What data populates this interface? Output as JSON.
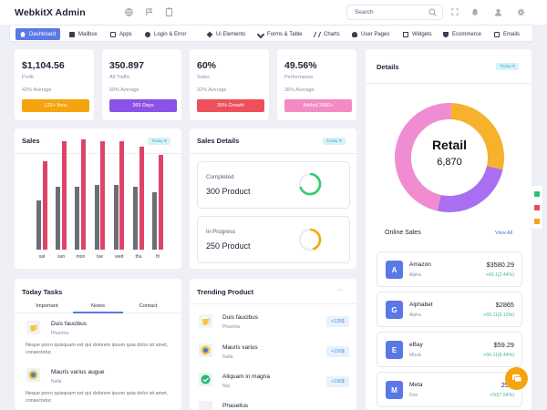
{
  "header": {
    "brand": "WebkitX Admin",
    "search_placeholder": "Search"
  },
  "nav": {
    "items": [
      {
        "label": "Dashboard",
        "icon": "home-icon"
      },
      {
        "label": "Mailbox",
        "icon": "mail-icon"
      },
      {
        "label": "Apps",
        "icon": "apps-icon"
      },
      {
        "label": "Login & Error",
        "icon": "lock-icon"
      },
      {
        "label": "Ui Elements",
        "icon": "ui-icon"
      },
      {
        "label": "Forms & Table",
        "icon": "form-icon"
      },
      {
        "label": "Charts",
        "icon": "chart-icon"
      },
      {
        "label": "User Pages",
        "icon": "user-icon"
      },
      {
        "label": "Widgets",
        "icon": "widget-icon"
      },
      {
        "label": "Ecommerce",
        "icon": "cart-icon"
      },
      {
        "label": "Emails",
        "icon": "email-icon"
      }
    ]
  },
  "stats": [
    {
      "value": "$1,104.56",
      "label": "Profit",
      "avg": "43% Average",
      "button": "123+ New",
      "color": "#f5a30f"
    },
    {
      "value": "350.897",
      "label": "All Traffic",
      "avg": "50% Average",
      "button": "365 Days",
      "color": "#8a52e8"
    },
    {
      "value": "60%",
      "label": "Sales",
      "avg": "32% Average",
      "button": "39% Growth",
      "color": "#ef4f5a"
    },
    {
      "value": "49.56%",
      "label": "Performance",
      "avg": "35% Average",
      "button": "Added 2560+",
      "color": "#f48ac4"
    }
  ],
  "sales": {
    "title": "Sales",
    "filter": "Today"
  },
  "chart_data": {
    "type": "bar",
    "categories": [
      "sat",
      "sun",
      "mon",
      "tue",
      "wed",
      "thu",
      "fri"
    ],
    "series": [
      {
        "values": [
          50,
          64,
          64,
          66,
          66,
          64,
          58
        ],
        "color": "#6c6e76"
      },
      {
        "values": [
          90,
          110,
          112,
          110,
          110,
          104,
          96
        ],
        "color": "#de4468"
      }
    ],
    "ylim": [
      0,
      120
    ]
  },
  "sales_details": {
    "title": "Sales Details",
    "filter": "Today",
    "items": [
      {
        "label": "Completed",
        "value": "300 Product",
        "color": "#2fcd6c",
        "percent": 0.7
      },
      {
        "label": "In Progress",
        "value": "250 Product",
        "color": "#f5a60f",
        "percent": 0.45
      }
    ]
  },
  "details": {
    "title": "Details",
    "filter": "Today",
    "center_label": "Retail",
    "center_value": "6,870",
    "donut": [
      {
        "value": 28,
        "color": "#f6b22c"
      },
      {
        "value": 25,
        "color": "#a96ff0"
      },
      {
        "value": 47,
        "color": "#f08cd2"
      }
    ]
  },
  "online_sales": {
    "title": "Online Sales",
    "view_all": "View All",
    "items": [
      {
        "letter": "A",
        "name": "Amazon",
        "sub": "Alpha",
        "price": "$3580.29",
        "change": "+60.1(2.44%)"
      },
      {
        "letter": "G",
        "name": "Alphabet",
        "sub": "Alpha",
        "price": "$2865",
        "change": "+60.11(9.10%)"
      },
      {
        "letter": "E",
        "name": "eBay",
        "sub": "Mizuk",
        "price": "$59.29",
        "change": "+66.11(8.44%)"
      },
      {
        "letter": "M",
        "name": "Meta",
        "sub": "Doe",
        "price": "257.",
        "change": "+50(7.54%)"
      }
    ]
  },
  "tasks": {
    "title": "Today Tasks",
    "tabs": [
      "Important",
      "Notes",
      "Contact"
    ],
    "items": [
      {
        "title": "Duis faucibus",
        "sub": "Pharetra",
        "desc": "Neque porro quisquam est qui dolorem ipsum quia dolor sit amet, consectetur."
      },
      {
        "title": "Mauris varius augue",
        "sub": "Nulla",
        "desc": "Neque porro quisquam est qui dolorem ipsum quia dolor sit amet, consectetur."
      }
    ]
  },
  "trending": {
    "title": "Trending Product",
    "more": "···",
    "items": [
      {
        "title": "Duis faucibus",
        "sub": "Pharetra",
        "price": "+125$"
      },
      {
        "title": "Mauris varius",
        "sub": "Nulla",
        "price": "+150$"
      },
      {
        "title": "Aliquam in magna",
        "sub": "Nisi",
        "price": "+190$"
      },
      {
        "title": "Phasellus",
        "sub": "",
        "price": ""
      }
    ]
  }
}
